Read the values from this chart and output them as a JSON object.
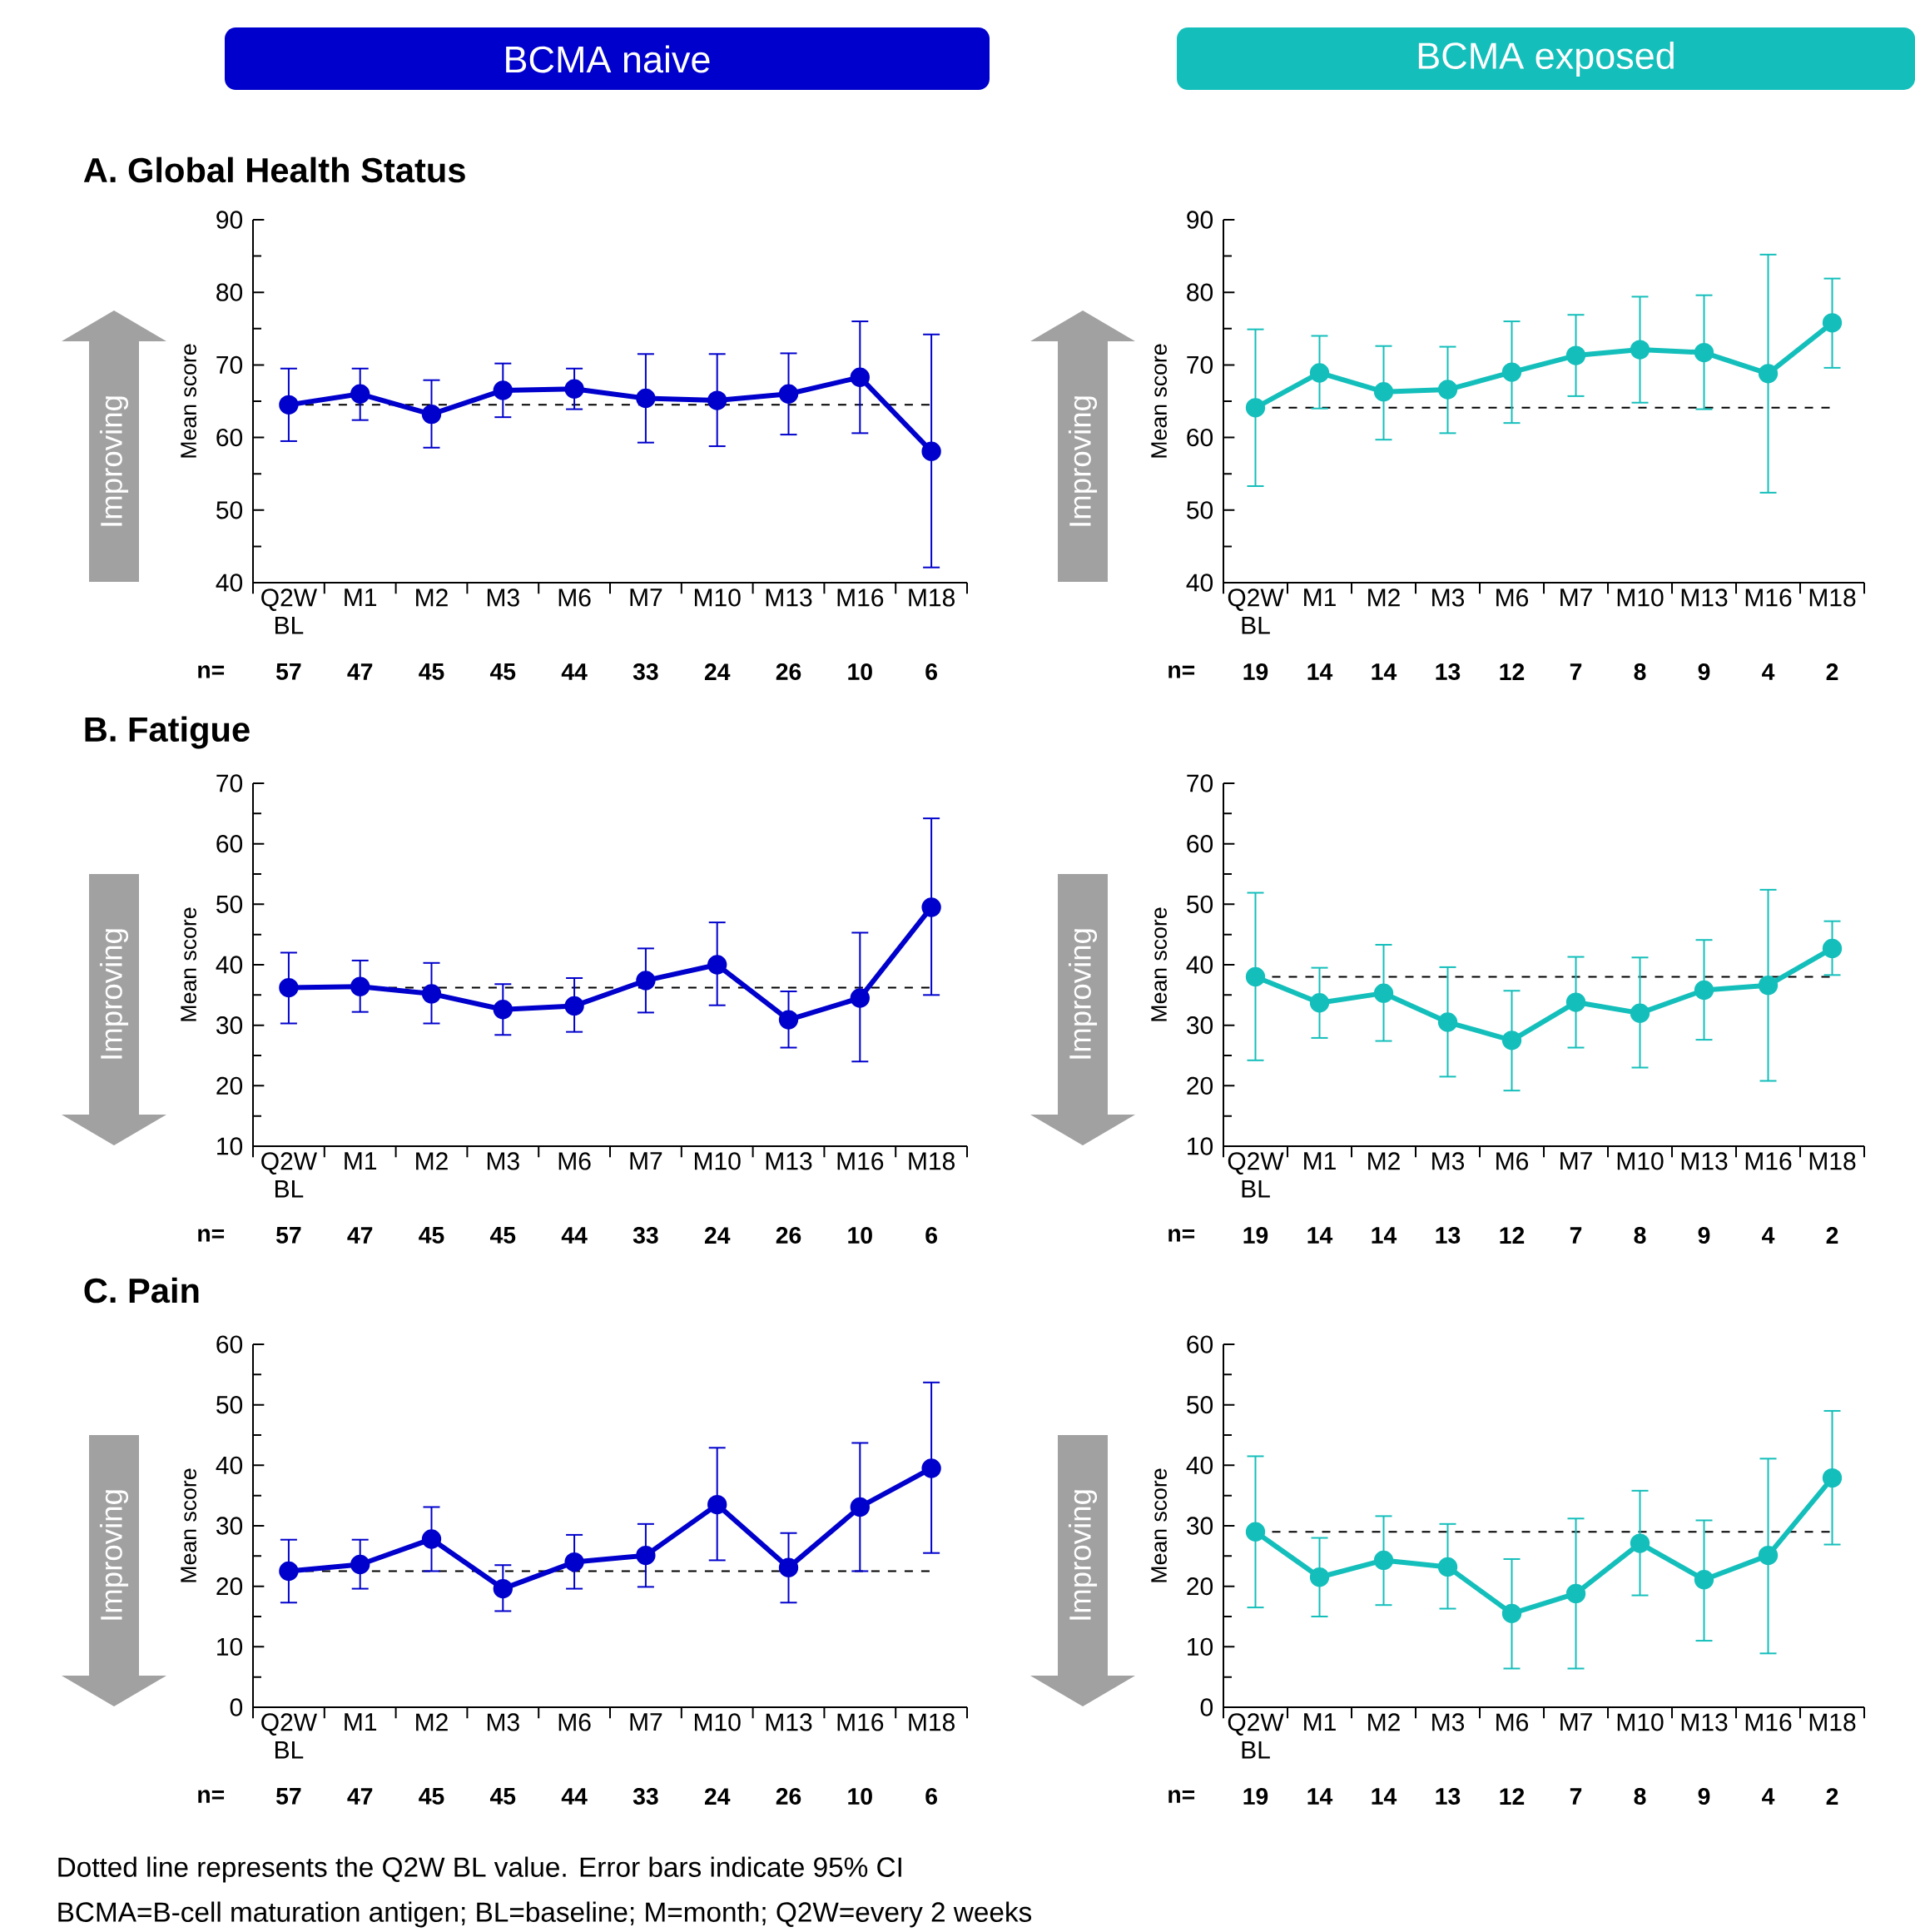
{
  "chart_data": [
    {
      "type": "line",
      "title": "BCMA naive",
      "subtitle": "A. Global Health Status",
      "ylabel": "Mean score",
      "categories": [
        "Q2W BL",
        "M1",
        "M2",
        "M3",
        "M6",
        "M7",
        "M10",
        "M13",
        "M16",
        "M18"
      ],
      "ylim": [
        40,
        90
      ],
      "yticks": [
        40,
        50,
        60,
        70,
        80,
        90
      ],
      "marker": "circle",
      "line_style": "solid",
      "series": [
        {
          "color": "#0000cc",
          "values": [
            64.5,
            66.0,
            63.2,
            66.5,
            66.7,
            65.4,
            65.1,
            66.0,
            68.3,
            58.1
          ],
          "errors": [
            [
              59.5,
              69.5
            ],
            [
              62.4,
              69.5
            ],
            [
              58.6,
              67.9
            ],
            [
              62.8,
              70.2
            ],
            [
              63.9,
              69.5
            ],
            [
              59.3,
              71.5
            ],
            [
              58.8,
              71.5
            ],
            [
              60.4,
              71.6
            ],
            [
              60.6,
              76.0
            ],
            [
              42.1,
              74.2
            ]
          ]
        }
      ],
      "ref_lines": [
        {
          "axis": "y",
          "value": 64.5,
          "color": "#000000",
          "line_style": "dashed"
        }
      ],
      "annotations": [
        "Improving",
        "n=",
        "57",
        "47",
        "45",
        "45",
        "44",
        "33",
        "24",
        "26",
        "10",
        "6"
      ]
    },
    {
      "type": "line",
      "title": "BCMA exposed",
      "ylabel": "Mean score",
      "categories": [
        "Q2W BL",
        "M1",
        "M2",
        "M3",
        "M6",
        "M7",
        "M10",
        "M13",
        "M16",
        "M18"
      ],
      "ylim": [
        40,
        90
      ],
      "yticks": [
        40,
        50,
        60,
        70,
        80,
        90
      ],
      "marker": "circle",
      "line_style": "solid",
      "series": [
        {
          "color": "#14bfbb",
          "values": [
            64.1,
            68.9,
            66.3,
            66.6,
            69.0,
            71.3,
            72.1,
            71.7,
            68.8,
            75.8
          ],
          "errors": [
            [
              53.3,
              74.9
            ],
            [
              64.0,
              74.0
            ],
            [
              59.7,
              72.6
            ],
            [
              60.6,
              72.5
            ],
            [
              62.0,
              76.0
            ],
            [
              65.7,
              76.9
            ],
            [
              64.8,
              79.4
            ],
            [
              63.9,
              79.6
            ],
            [
              52.4,
              85.2
            ],
            [
              69.6,
              81.9
            ]
          ]
        }
      ],
      "ref_lines": [
        {
          "axis": "y",
          "value": 64.1,
          "color": "#000000",
          "line_style": "dashed"
        }
      ],
      "annotations": [
        "Improving",
        "n=",
        "19",
        "14",
        "14",
        "13",
        "12",
        "7",
        "8",
        "9",
        "4",
        "2"
      ]
    },
    {
      "type": "line",
      "title": "B. Fatigue",
      "ylabel": "Mean score",
      "categories": [
        "Q2W BL",
        "M1",
        "M2",
        "M3",
        "M6",
        "M7",
        "M10",
        "M13",
        "M16",
        "M18"
      ],
      "ylim": [
        10,
        70
      ],
      "yticks": [
        10,
        20,
        30,
        40,
        50,
        60,
        70
      ],
      "marker": "circle",
      "line_style": "solid",
      "series": [
        {
          "color": "#0000cc",
          "values": [
            36.2,
            36.4,
            35.2,
            32.6,
            33.2,
            37.4,
            40.0,
            30.9,
            34.5,
            49.5
          ],
          "errors": [
            [
              30.3,
              42.0
            ],
            [
              32.2,
              40.7
            ],
            [
              30.3,
              40.3
            ],
            [
              28.4,
              36.8
            ],
            [
              28.9,
              37.8
            ],
            [
              32.1,
              42.7
            ],
            [
              33.3,
              47.0
            ],
            [
              26.3,
              35.6
            ],
            [
              24.0,
              45.3
            ],
            [
              35.0,
              64.2
            ]
          ]
        }
      ],
      "ref_lines": [
        {
          "axis": "y",
          "value": 36.2,
          "color": "#000000",
          "line_style": "dashed"
        }
      ],
      "annotations": [
        "Improving",
        "n=",
        "57",
        "47",
        "45",
        "45",
        "44",
        "33",
        "24",
        "26",
        "10",
        "6"
      ]
    },
    {
      "type": "line",
      "ylabel": "Mean score",
      "categories": [
        "Q2W BL",
        "M1",
        "M2",
        "M3",
        "M6",
        "M7",
        "M10",
        "M13",
        "M16",
        "M18"
      ],
      "ylim": [
        10,
        70
      ],
      "yticks": [
        10,
        20,
        30,
        40,
        50,
        60,
        70
      ],
      "marker": "circle",
      "line_style": "solid",
      "series": [
        {
          "color": "#14bfbb",
          "values": [
            38.0,
            33.7,
            35.3,
            30.5,
            27.5,
            33.8,
            32.0,
            35.8,
            36.6,
            42.7
          ],
          "errors": [
            [
              24.2,
              51.9
            ],
            [
              27.9,
              39.5
            ],
            [
              27.4,
              43.3
            ],
            [
              21.5,
              39.6
            ],
            [
              19.2,
              35.7
            ],
            [
              26.3,
              41.3
            ],
            [
              23.0,
              41.2
            ],
            [
              27.6,
              44.1
            ],
            [
              20.8,
              52.4
            ],
            [
              38.3,
              47.2
            ]
          ]
        }
      ],
      "ref_lines": [
        {
          "axis": "y",
          "value": 38.0,
          "color": "#000000",
          "line_style": "dashed"
        }
      ],
      "annotations": [
        "Improving",
        "n=",
        "19",
        "14",
        "14",
        "13",
        "12",
        "7",
        "8",
        "9",
        "4",
        "2"
      ]
    },
    {
      "type": "line",
      "title": "C. Pain",
      "ylabel": "Mean score",
      "categories": [
        "Q2W BL",
        "M1",
        "M2",
        "M3",
        "M6",
        "M7",
        "M10",
        "M13",
        "M16",
        "M18"
      ],
      "ylim": [
        0,
        60
      ],
      "yticks": [
        0,
        10,
        20,
        30,
        40,
        50,
        60
      ],
      "marker": "circle",
      "line_style": "solid",
      "series": [
        {
          "color": "#0000cc",
          "values": [
            22.5,
            23.6,
            27.8,
            19.6,
            24.0,
            25.1,
            33.5,
            23.1,
            33.1,
            39.5
          ],
          "errors": [
            [
              17.3,
              27.7
            ],
            [
              19.6,
              27.7
            ],
            [
              22.5,
              33.1
            ],
            [
              15.9,
              23.5
            ],
            [
              19.6,
              28.5
            ],
            [
              19.9,
              30.3
            ],
            [
              24.3,
              42.9
            ],
            [
              17.3,
              28.8
            ],
            [
              22.5,
              43.7
            ],
            [
              25.5,
              53.7
            ]
          ]
        }
      ],
      "ref_lines": [
        {
          "axis": "y",
          "value": 22.5,
          "color": "#000000",
          "line_style": "dashed"
        }
      ],
      "annotations": [
        "Improving",
        "n=",
        "57",
        "47",
        "45",
        "45",
        "44",
        "33",
        "24",
        "26",
        "10",
        "6"
      ]
    },
    {
      "type": "line",
      "ylabel": "Mean score",
      "categories": [
        "Q2W BL",
        "M1",
        "M2",
        "M3",
        "M6",
        "M7",
        "M10",
        "M13",
        "M16",
        "M18"
      ],
      "ylim": [
        0,
        60
      ],
      "yticks": [
        0,
        10,
        20,
        30,
        40,
        50,
        60
      ],
      "marker": "circle",
      "line_style": "solid",
      "series": [
        {
          "color": "#14bfbb",
          "values": [
            29.0,
            21.5,
            24.3,
            23.2,
            15.5,
            18.8,
            27.1,
            21.1,
            25.1,
            37.9
          ],
          "errors": [
            [
              16.5,
              41.5
            ],
            [
              15.0,
              28.0
            ],
            [
              16.9,
              31.6
            ],
            [
              16.3,
              30.3
            ],
            [
              6.4,
              24.5
            ],
            [
              6.4,
              31.2
            ],
            [
              18.5,
              35.8
            ],
            [
              11.0,
              30.9
            ],
            [
              8.9,
              41.1
            ],
            [
              26.9,
              49.0
            ]
          ]
        }
      ],
      "ref_lines": [
        {
          "axis": "y",
          "value": 29.0,
          "color": "#000000",
          "line_style": "dashed"
        }
      ],
      "annotations": [
        "Improving",
        "n=",
        "19",
        "14",
        "14",
        "13",
        "12",
        "7",
        "8",
        "9",
        "4",
        "2",
        "Dotted line represents the Q2W BL value. Error bars indicate 95% CI",
        "BCMA=B-cell maturation antigen; BL=baseline;  M=month; Q2W=every 2 weeks"
      ]
    }
  ]
}
